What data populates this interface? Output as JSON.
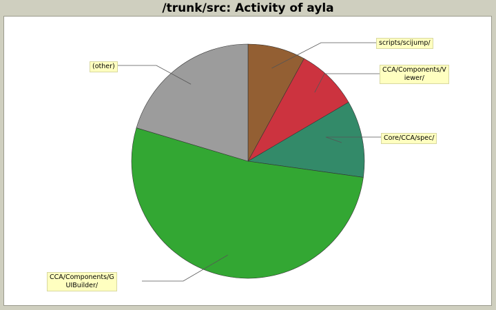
{
  "chart_data": {
    "type": "pie",
    "title": "/trunk/src: Activity of ayla",
    "slices": [
      {
        "label": "scripts/scijump/",
        "value": 8.0,
        "color": "#935f33"
      },
      {
        "label": "CCA/Components/V\niewer/",
        "value": 8.6,
        "color": "#cc333f"
      },
      {
        "label": "Core/CCA/spec/",
        "value": 10.6,
        "color": "#338a69"
      },
      {
        "label": "CCA/Components/G\nUIBuilder/",
        "value": 52.4,
        "color": "#33a733"
      },
      {
        "label": "(other)",
        "value": 20.4,
        "color": "#9c9c9c"
      }
    ]
  }
}
